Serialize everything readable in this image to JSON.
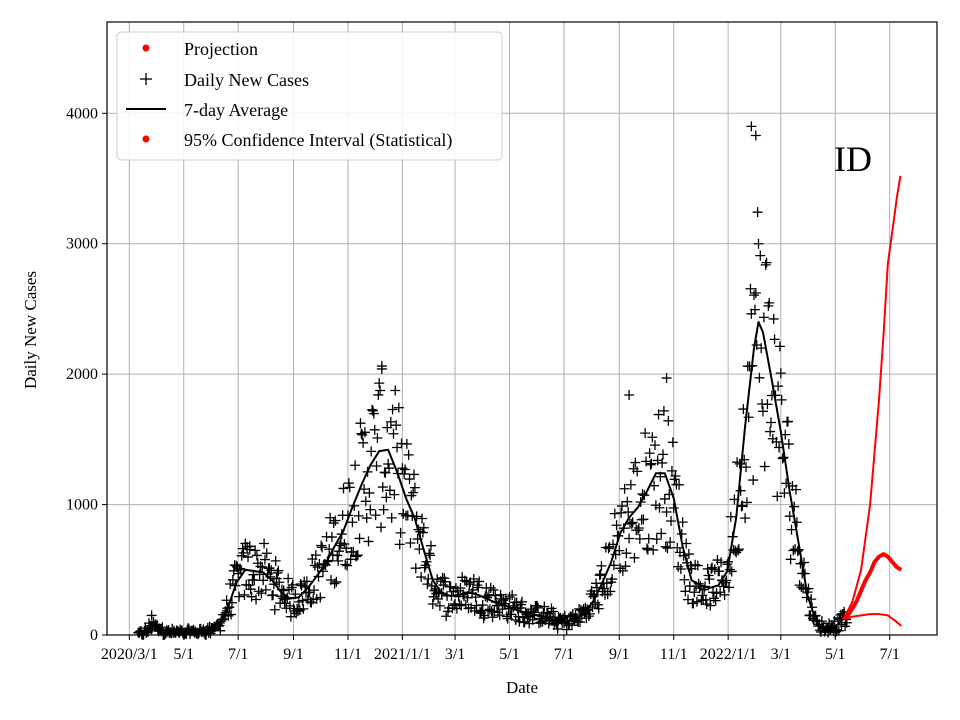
{
  "chart_data": {
    "type": "line",
    "title": "",
    "annotation": "ID",
    "xlabel": "Date",
    "ylabel": "Daily New Cases",
    "ylim": [
      0,
      4700
    ],
    "grid": true,
    "legend_position": "top-left",
    "y_ticks": [
      {
        "value": 0,
        "label": "0"
      },
      {
        "value": 1000,
        "label": "1000"
      },
      {
        "value": 2000,
        "label": "2000"
      },
      {
        "value": 3000,
        "label": "3000"
      },
      {
        "value": 4000,
        "label": "4000"
      }
    ],
    "x_ticks": [
      {
        "day": 0,
        "label": "2020/3/1"
      },
      {
        "day": 61,
        "label": "5/1"
      },
      {
        "day": 122,
        "label": "7/1"
      },
      {
        "day": 184,
        "label": "9/1"
      },
      {
        "day": 245,
        "label": "11/1"
      },
      {
        "day": 306,
        "label": "2021/1/1"
      },
      {
        "day": 365,
        "label": "3/1"
      },
      {
        "day": 426,
        "label": "5/1"
      },
      {
        "day": 487,
        "label": "7/1"
      },
      {
        "day": 549,
        "label": "9/1"
      },
      {
        "day": 610,
        "label": "11/1"
      },
      {
        "day": 671,
        "label": "2022/1/1"
      },
      {
        "day": 730,
        "label": "3/1"
      },
      {
        "day": 791,
        "label": "5/1"
      },
      {
        "day": 852,
        "label": "7/1"
      }
    ],
    "x_day_range": [
      -25,
      905
    ],
    "legend": [
      {
        "label": "Projection",
        "style": "red-dot"
      },
      {
        "label": "Daily New Cases",
        "style": "black-plus"
      },
      {
        "label": "7-day Average",
        "style": "black-line"
      },
      {
        "label": "95% Confidence Interval (Statistical)",
        "style": "red-dot"
      }
    ],
    "series": [
      {
        "name": "7-day Average",
        "color": "#000000",
        "points": [
          [
            10,
            0
          ],
          [
            20,
            30
          ],
          [
            25,
            80
          ],
          [
            30,
            60
          ],
          [
            40,
            25
          ],
          [
            60,
            15
          ],
          [
            80,
            25
          ],
          [
            90,
            40
          ],
          [
            100,
            70
          ],
          [
            110,
            200
          ],
          [
            120,
            400
          ],
          [
            130,
            500
          ],
          [
            140,
            490
          ],
          [
            150,
            480
          ],
          [
            160,
            420
          ],
          [
            170,
            330
          ],
          [
            180,
            280
          ],
          [
            190,
            290
          ],
          [
            200,
            360
          ],
          [
            210,
            450
          ],
          [
            220,
            550
          ],
          [
            230,
            680
          ],
          [
            240,
            800
          ],
          [
            250,
            980
          ],
          [
            260,
            1150
          ],
          [
            270,
            1300
          ],
          [
            280,
            1410
          ],
          [
            290,
            1420
          ],
          [
            300,
            1250
          ],
          [
            310,
            1050
          ],
          [
            320,
            890
          ],
          [
            330,
            650
          ],
          [
            340,
            420
          ],
          [
            350,
            320
          ],
          [
            360,
            300
          ],
          [
            370,
            310
          ],
          [
            380,
            330
          ],
          [
            390,
            310
          ],
          [
            400,
            280
          ],
          [
            410,
            250
          ],
          [
            420,
            230
          ],
          [
            430,
            200
          ],
          [
            440,
            180
          ],
          [
            450,
            160
          ],
          [
            460,
            150
          ],
          [
            470,
            130
          ],
          [
            480,
            110
          ],
          [
            490,
            100
          ],
          [
            500,
            120
          ],
          [
            510,
            170
          ],
          [
            520,
            260
          ],
          [
            530,
            400
          ],
          [
            540,
            560
          ],
          [
            550,
            780
          ],
          [
            560,
            900
          ],
          [
            570,
            980
          ],
          [
            580,
            1100
          ],
          [
            590,
            1240
          ],
          [
            600,
            1240
          ],
          [
            610,
            1050
          ],
          [
            620,
            680
          ],
          [
            630,
            420
          ],
          [
            640,
            380
          ],
          [
            650,
            360
          ],
          [
            660,
            380
          ],
          [
            670,
            490
          ],
          [
            680,
            900
          ],
          [
            690,
            1600
          ],
          [
            700,
            2200
          ],
          [
            705,
            2400
          ],
          [
            710,
            2320
          ],
          [
            720,
            1950
          ],
          [
            730,
            1560
          ],
          [
            740,
            1100
          ],
          [
            750,
            700
          ],
          [
            760,
            300
          ],
          [
            770,
            100
          ],
          [
            780,
            50
          ],
          [
            790,
            60
          ],
          [
            800,
            120
          ]
        ]
      },
      {
        "name": "Projection",
        "color": "#ff0000",
        "points": [
          [
            800,
            120
          ],
          [
            805,
            150
          ],
          [
            810,
            200
          ],
          [
            815,
            260
          ],
          [
            820,
            340
          ],
          [
            825,
            420
          ],
          [
            830,
            480
          ],
          [
            835,
            560
          ],
          [
            840,
            600
          ],
          [
            845,
            620
          ],
          [
            850,
            600
          ],
          [
            855,
            560
          ],
          [
            860,
            520
          ],
          [
            865,
            500
          ]
        ]
      },
      {
        "name": "95% Confidence Interval (Statistical) upper",
        "color": "#ff0000",
        "points": [
          [
            800,
            120
          ],
          [
            810,
            250
          ],
          [
            820,
            500
          ],
          [
            830,
            1000
          ],
          [
            840,
            1800
          ],
          [
            845,
            2300
          ],
          [
            850,
            2850
          ],
          [
            855,
            3100
          ],
          [
            860,
            3350
          ],
          [
            864,
            3520
          ]
        ]
      },
      {
        "name": "95% Confidence Interval (Statistical) lower",
        "color": "#ff0000",
        "points": [
          [
            800,
            120
          ],
          [
            810,
            140
          ],
          [
            820,
            150
          ],
          [
            830,
            160
          ],
          [
            840,
            160
          ],
          [
            850,
            150
          ],
          [
            858,
            110
          ],
          [
            865,
            70
          ]
        ]
      }
    ],
    "daily_cases_peaks": [
      {
        "day": 25,
        "value": 150
      },
      {
        "day": 135,
        "value": 680
      },
      {
        "day": 283,
        "value": 2040
      },
      {
        "day": 560,
        "value": 1840
      },
      {
        "day": 602,
        "value": 1970
      },
      {
        "day": 697,
        "value": 3900
      },
      {
        "day": 702,
        "value": 3830
      }
    ]
  }
}
